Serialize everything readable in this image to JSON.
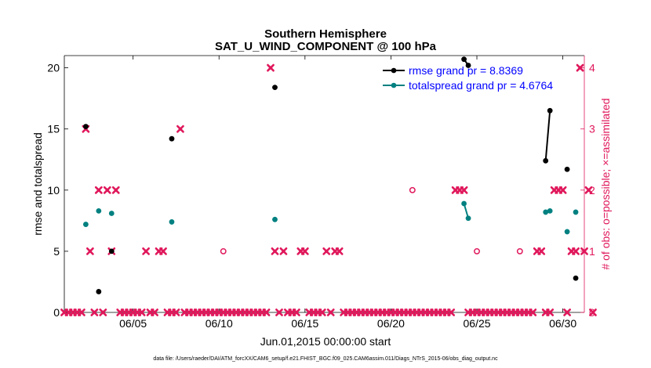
{
  "chart_data": {
    "type": "line",
    "title": "Southern Hemisphere",
    "subtitle": "SAT_U_WIND_COMPONENT @ 100 hPa",
    "xlabel": "Jun.01,2015 00:00:00 start",
    "ylabel": "rmse and totalspread",
    "y2label": "# of obs: o=possible; ×=assimilated",
    "footnote": "data file: /Users/raeder/DAI/ATM_forcXX/CAM6_setup/f.e21.FHIST_BGC.f09_025.CAM6assim.011/Diags_NTrS_2015-06/obs_diag_output.nc",
    "xlim": [
      1,
      31.25
    ],
    "ylim": [
      0,
      21
    ],
    "y2lim": [
      0,
      4.2
    ],
    "x_ticks": [
      5,
      10,
      15,
      20,
      25,
      30
    ],
    "x_tick_labels": [
      "06/05",
      "06/10",
      "06/15",
      "06/20",
      "06/25",
      "06/30"
    ],
    "y_ticks": [
      0,
      5,
      10,
      15,
      20
    ],
    "y_tick_labels": [
      "0",
      "5",
      "10",
      "15",
      "20"
    ],
    "y2_ticks": [
      0,
      1,
      2,
      3,
      4
    ],
    "y2_tick_labels": [
      "0",
      "1",
      "2",
      "3",
      "4"
    ],
    "legend_position": "top-right",
    "legend": [
      "rmse grand pr = 8.8369",
      "totalspread grand pr = 4.6764"
    ],
    "colors": {
      "rmse": "#000000",
      "spread": "#008080",
      "obs": "#e0185c",
      "legend_text": "#0000ff"
    },
    "series": [
      {
        "name": "rmse grand pr = 8.8369",
        "axis": "left",
        "segments": [
          [
            [
              2.25,
              15.2
            ]
          ],
          [
            [
              3.0,
              1.7
            ]
          ],
          [
            [
              3.75,
              5.0
            ]
          ],
          [
            [
              7.25,
              14.2
            ]
          ],
          [
            [
              13.25,
              18.4
            ]
          ],
          [
            [
              24.25,
              20.7
            ],
            [
              24.5,
              20.2
            ]
          ],
          [
            [
              29.0,
              12.4
            ],
            [
              29.25,
              16.5
            ]
          ],
          [
            [
              30.25,
              11.7
            ]
          ],
          [
            [
              30.75,
              2.8
            ]
          ]
        ]
      },
      {
        "name": "totalspread grand pr = 4.6764",
        "axis": "left",
        "segments": [
          [
            [
              2.25,
              7.2
            ]
          ],
          [
            [
              3.0,
              8.3
            ]
          ],
          [
            [
              3.75,
              8.1
            ]
          ],
          [
            [
              7.25,
              7.4
            ]
          ],
          [
            [
              13.25,
              7.6
            ]
          ],
          [
            [
              24.25,
              8.9
            ],
            [
              24.5,
              7.7
            ]
          ],
          [
            [
              29.0,
              8.2
            ],
            [
              29.25,
              8.3
            ]
          ],
          [
            [
              30.25,
              6.6
            ]
          ],
          [
            [
              30.75,
              8.2
            ]
          ]
        ]
      }
    ],
    "obs_possible": [
      0,
      0,
      0,
      0,
      0,
      3,
      1,
      0,
      2,
      0,
      2,
      1,
      2,
      0,
      0,
      0,
      0,
      0,
      0,
      1,
      0,
      0,
      1,
      1,
      0,
      0,
      0,
      3,
      0,
      0,
      0,
      0,
      0,
      0,
      0,
      0,
      0,
      1,
      0,
      0,
      0,
      0,
      0,
      0,
      0,
      0,
      0,
      0,
      4,
      1,
      0,
      1,
      0,
      0,
      0,
      1,
      1,
      0,
      0,
      0,
      0,
      1,
      0,
      1,
      1,
      0,
      0,
      0,
      0,
      0,
      0,
      0,
      0,
      0,
      0,
      0,
      0,
      0,
      0,
      0,
      0,
      2,
      0,
      0,
      0,
      0,
      0,
      0,
      0,
      0,
      0,
      2,
      2,
      2,
      0,
      0,
      1,
      0,
      0,
      0,
      0,
      0,
      0,
      0,
      0,
      0,
      1,
      0,
      0,
      0,
      1,
      1,
      0,
      0,
      2,
      2,
      2,
      0,
      1,
      1,
      4,
      1,
      2,
      0
    ],
    "obs_assimilated": [
      0,
      0,
      0,
      0,
      0,
      3,
      1,
      0,
      2,
      0,
      2,
      1,
      2,
      0,
      0,
      0,
      0,
      0,
      0,
      1,
      0,
      0,
      1,
      1,
      0,
      0,
      0,
      3,
      0,
      0,
      0,
      0,
      0,
      0,
      0,
      0,
      0,
      0,
      0,
      0,
      0,
      0,
      0,
      0,
      0,
      0,
      0,
      0,
      4,
      1,
      0,
      1,
      0,
      0,
      0,
      1,
      1,
      0,
      0,
      0,
      0,
      1,
      0,
      1,
      1,
      0,
      0,
      0,
      0,
      0,
      0,
      0,
      0,
      0,
      0,
      0,
      0,
      0,
      0,
      0,
      0,
      0,
      0,
      0,
      0,
      0,
      0,
      0,
      0,
      0,
      0,
      2,
      2,
      2,
      0,
      0,
      0,
      0,
      0,
      0,
      0,
      0,
      0,
      0,
      0,
      0,
      0,
      0,
      0,
      0,
      1,
      1,
      0,
      0,
      2,
      2,
      2,
      0,
      1,
      1,
      4,
      1,
      2,
      0
    ],
    "obs_x_start": 1.0,
    "obs_x_step": 0.25
  }
}
